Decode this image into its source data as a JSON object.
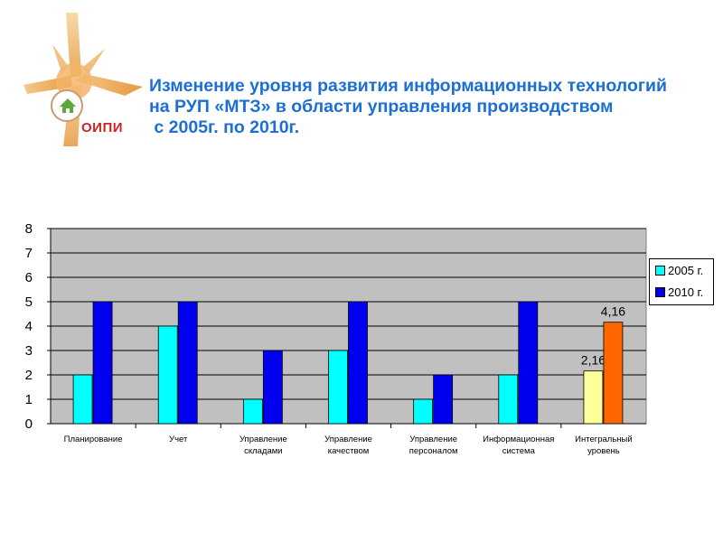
{
  "logo": {
    "text": "ОИПИ"
  },
  "title_lines": [
    "Изменение уровня развития информационных технологий",
    "на РУП «МТЗ» в области управления производством",
    " с 2005г. по 2010г."
  ],
  "colors": {
    "title": "#1b6fd6",
    "plot_bg": "#c0c0c0",
    "series_2005": "#00ffff",
    "series_2010": "#0000ee",
    "integral_2005": "#ffff99",
    "integral_2010": "#ff6600"
  },
  "chart_data": {
    "type": "bar",
    "categories": [
      [
        "Планирование"
      ],
      [
        "Учет"
      ],
      [
        "Управление",
        "складами"
      ],
      [
        "Управление",
        "качеством"
      ],
      [
        "Управление",
        "персоналом"
      ],
      [
        "Информационная",
        "система"
      ],
      [
        "Интегральный",
        "уровень"
      ]
    ],
    "series": [
      {
        "name": "2005 г.",
        "values": [
          2,
          4,
          1,
          3,
          1,
          2,
          2.16
        ]
      },
      {
        "name": "2010 г.",
        "values": [
          5,
          5,
          3,
          5,
          2,
          5,
          4.16
        ]
      }
    ],
    "data_labels": {
      "6": [
        "2,16",
        "4,16"
      ]
    },
    "ylim": [
      0,
      8
    ],
    "yticks": [
      0,
      1,
      2,
      3,
      4,
      5,
      6,
      7,
      8
    ],
    "grid": true,
    "legend": "right"
  }
}
